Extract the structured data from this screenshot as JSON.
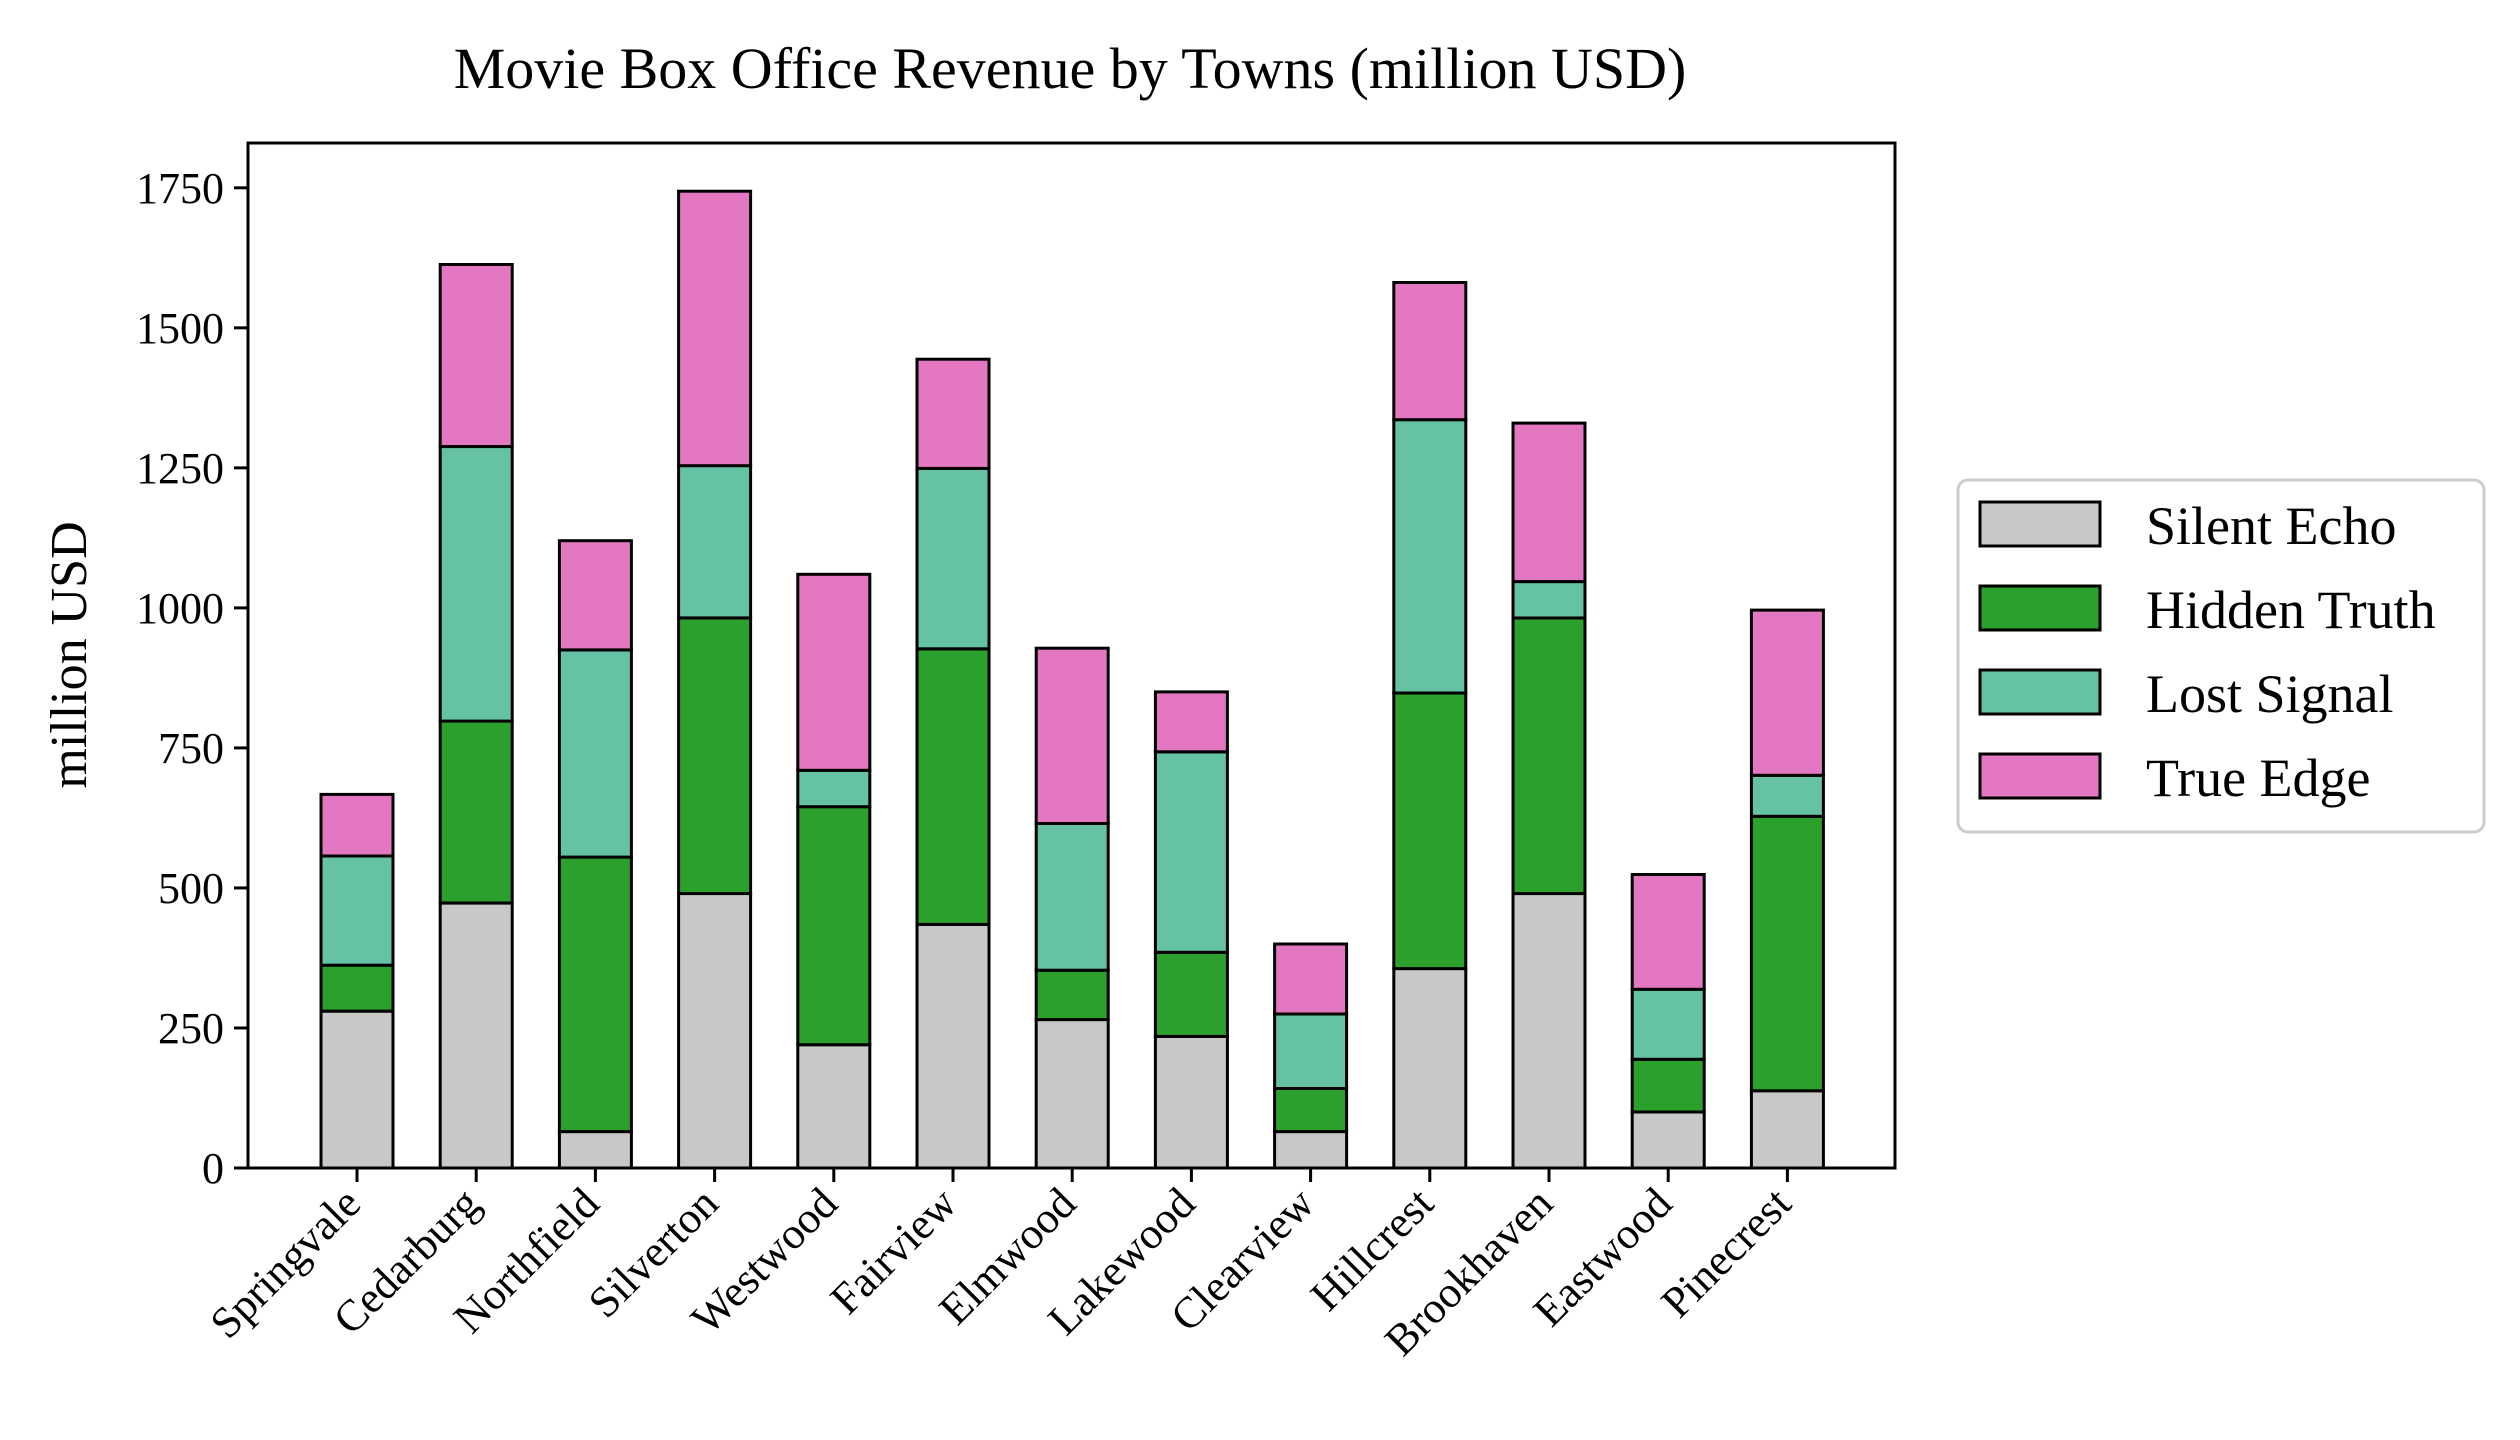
{
  "chart_data": {
    "type": "bar",
    "stacked": true,
    "title": "Movie Box Office Revenue by Towns (million USD)",
    "xlabel": "",
    "ylabel": "million USD",
    "ylim": [
      0,
      1830
    ],
    "yticks": [
      0,
      250,
      500,
      750,
      1000,
      1250,
      1500,
      1750
    ],
    "legend_position": "right",
    "categories": [
      "Springvale",
      "Cedarburg",
      "Northfield",
      "Silverton",
      "Westwood",
      "Fairview",
      "Elmwood",
      "Lakewood",
      "Clearview",
      "Hillcrest",
      "Brookhaven",
      "Eastwood",
      "Pinecrest"
    ],
    "series": [
      {
        "name": "Silent Echo",
        "color": "#c8c8c8",
        "values": [
          280,
          473,
          65,
          490,
          220,
          435,
          265,
          235,
          65,
          356,
          490,
          100,
          138
        ]
      },
      {
        "name": "Hidden Truth",
        "color": "#2ca02c",
        "values": [
          82,
          325,
          490,
          492,
          425,
          492,
          88,
          150,
          77,
          492,
          492,
          94,
          490
        ]
      },
      {
        "name": "Lost Signal",
        "color": "#66c2a5",
        "values": [
          195,
          490,
          370,
          272,
          65,
          322,
          262,
          358,
          133,
          488,
          65,
          125,
          73
        ]
      },
      {
        "name": "True Edge",
        "color": "#e377c2",
        "values": [
          110,
          325,
          195,
          490,
          350,
          195,
          313,
          107,
          125,
          245,
          283,
          205,
          295
        ]
      }
    ]
  }
}
